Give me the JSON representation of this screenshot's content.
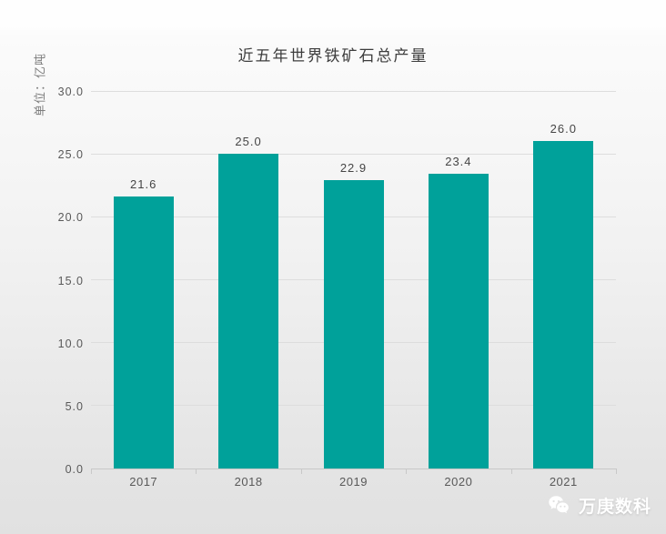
{
  "chart_data": {
    "type": "bar",
    "title": "近五年世界铁矿石总产量",
    "ylabel": "单位：亿吨",
    "xlabel": "",
    "categories": [
      "2017",
      "2018",
      "2019",
      "2020",
      "2021"
    ],
    "values": [
      21.6,
      25.0,
      22.9,
      23.4,
      26.0
    ],
    "value_labels": [
      "21.6",
      "25.0",
      "22.9",
      "23.4",
      "26.0"
    ],
    "y_ticks": [
      {
        "value": 30,
        "label": "30.0"
      },
      {
        "value": 25,
        "label": "25.0"
      },
      {
        "value": 20,
        "label": "20.0"
      },
      {
        "value": 15,
        "label": "15.0"
      },
      {
        "value": 10,
        "label": "10.0"
      },
      {
        "value": 5,
        "label": "5.0"
      },
      {
        "value": 0,
        "label": "0.0"
      }
    ],
    "ylim": [
      0,
      30
    ],
    "grid": true,
    "legend": false
  },
  "watermark": {
    "text": "万庚数科",
    "icon": "wechat-icon"
  },
  "colors": {
    "bar": "#00A19A",
    "gridline": "#DDDDDD",
    "axis_line": "#C8C8C8",
    "title_text": "#3D3D3D",
    "tick_text": "#595959",
    "unit_text": "#7D7D7D",
    "value_text": "#454545",
    "background_top": "#FEFEFE",
    "background_bottom": "#E1E1E1",
    "watermark_text": "#FFFFFF",
    "watermark_eye": "#E1E1E1"
  }
}
